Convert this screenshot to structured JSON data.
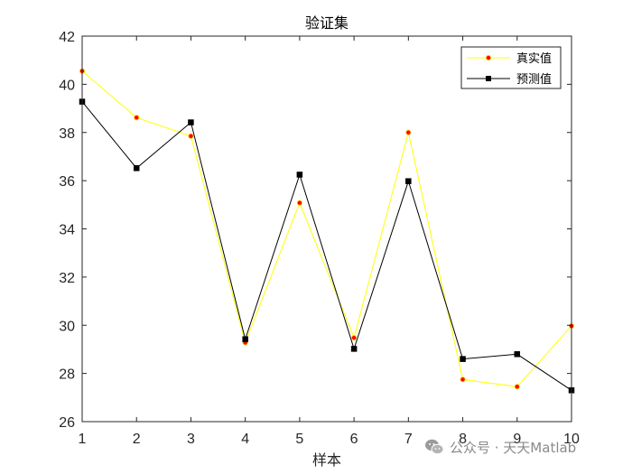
{
  "chart_data": {
    "type": "line",
    "title": "验证集",
    "xlabel": "样本",
    "ylabel": "",
    "x": [
      1,
      2,
      3,
      4,
      5,
      6,
      7,
      8,
      9,
      10
    ],
    "xlim": [
      1,
      10
    ],
    "ylim": [
      26,
      42
    ],
    "xticks": [
      "1",
      "2",
      "3",
      "4",
      "5",
      "6",
      "7",
      "8",
      "9",
      "10"
    ],
    "yticks": [
      "26",
      "28",
      "30",
      "32",
      "34",
      "36",
      "38",
      "40",
      "42"
    ],
    "grid": false,
    "legend_position": "top-right",
    "series": [
      {
        "name": "真实值",
        "values": [
          40.55,
          38.62,
          37.85,
          29.28,
          35.08,
          29.48,
          38.0,
          27.75,
          27.45,
          29.97
        ],
        "line_color": "#ffff00",
        "marker": "circle",
        "marker_face": "#ff0000",
        "marker_edge": "#ffcc00"
      },
      {
        "name": "预测值",
        "values": [
          39.28,
          36.52,
          38.42,
          29.42,
          36.25,
          29.02,
          35.98,
          28.6,
          28.8,
          27.3
        ],
        "line_color": "#000000",
        "marker": "square",
        "marker_face": "#000000",
        "marker_edge": "#000000"
      }
    ]
  },
  "watermark": {
    "text": "公众号 · 天天Matlab",
    "icon": "wechat-icon"
  }
}
